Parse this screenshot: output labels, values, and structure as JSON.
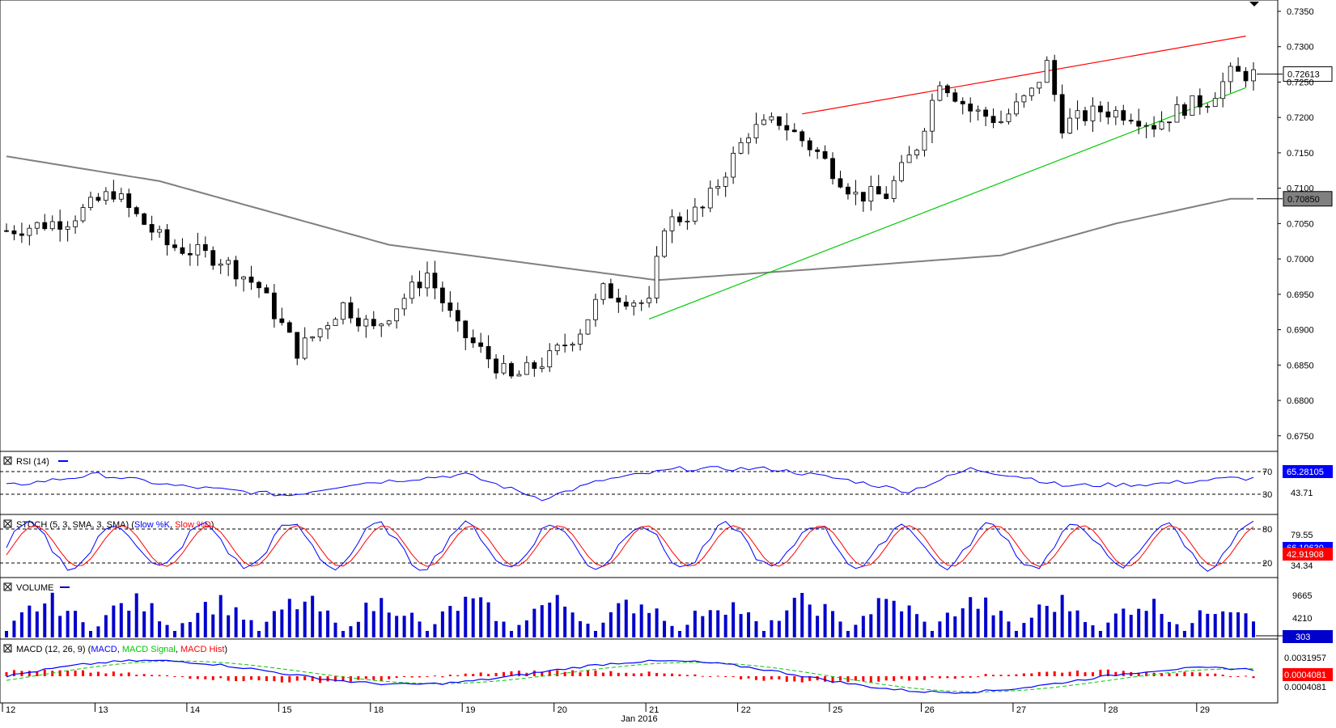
{
  "colors": {
    "candle": "#000000",
    "ma_line": "#808080",
    "resistance_line": "#ff0000",
    "support_line": "#00c800",
    "rsi": "#0000ff",
    "stoch_k": "#0000ff",
    "stoch_d": "#ff0000",
    "volume": "#0000cc",
    "macd": "#0000ff",
    "macd_signal": "#00c800",
    "macd_hist": "#ff0000",
    "last_price_label_bg": "#ffffff",
    "ma_label_bg": "#808080",
    "stoch_d_label_bg": "#ff0000",
    "volume_label_bg": "#0000cc",
    "macd_hist_label_bg": "#ff0000"
  },
  "chart_data": [
    {
      "type": "candlestick",
      "panel": "price",
      "y_ticks": [
        "0.7350",
        "0.7300",
        "0.7250",
        "0.7200",
        "0.7150",
        "0.7100",
        "0.7050",
        "0.7000",
        "0.6950",
        "0.6900",
        "0.6850",
        "0.6800",
        "0.6750"
      ],
      "ylim": [
        0.6728,
        0.7366
      ],
      "last_price_label": "0.72613",
      "ma_value_label": "0.70850",
      "approx_close_path": [
        [
          0,
          0.704
        ],
        [
          8,
          0.7055
        ],
        [
          14,
          0.7095
        ],
        [
          16,
          0.707
        ],
        [
          21,
          0.702
        ],
        [
          28,
          0.7
        ],
        [
          33,
          0.696
        ],
        [
          38,
          0.687
        ],
        [
          40,
          0.689
        ],
        [
          44,
          0.6935
        ],
        [
          48,
          0.69
        ],
        [
          55,
          0.698
        ],
        [
          59,
          0.69
        ],
        [
          66,
          0.683
        ],
        [
          71,
          0.686
        ],
        [
          75,
          0.69
        ],
        [
          78,
          0.6955
        ],
        [
          84,
          0.6935
        ],
        [
          86,
          0.705
        ],
        [
          91,
          0.707
        ],
        [
          97,
          0.718
        ],
        [
          101,
          0.7195
        ],
        [
          106,
          0.715
        ],
        [
          111,
          0.709
        ],
        [
          115,
          0.709
        ],
        [
          119,
          0.716
        ],
        [
          122,
          0.7255
        ],
        [
          126,
          0.721
        ],
        [
          130,
          0.7195
        ],
        [
          134,
          0.7235
        ],
        [
          136,
          0.7275
        ],
        [
          138,
          0.719
        ],
        [
          143,
          0.721
        ],
        [
          147,
          0.7205
        ],
        [
          150,
          0.719
        ],
        [
          154,
          0.7215
        ],
        [
          157,
          0.7225
        ],
        [
          160,
          0.7261
        ]
      ],
      "ma_path": [
        [
          0,
          0.7145
        ],
        [
          20,
          0.711
        ],
        [
          50,
          0.702
        ],
        [
          85,
          0.697
        ],
        [
          105,
          0.6985
        ],
        [
          130,
          0.7005
        ],
        [
          145,
          0.705
        ],
        [
          160,
          0.7085
        ]
      ],
      "resistance_line": {
        "from": [
          104,
          0.7205
        ],
        "to": [
          162,
          0.7315
        ]
      },
      "support_line": {
        "from": [
          84,
          0.6915
        ],
        "to": [
          162,
          0.7242
        ]
      }
    },
    {
      "type": "line",
      "panel": "rsi",
      "title": "RSI (14)",
      "levels": [
        "70",
        "30"
      ],
      "value_labels": [
        "65.28105",
        "43.71"
      ],
      "ylim": [
        0,
        100
      ],
      "path": [
        [
          0,
          45
        ],
        [
          12,
          65
        ],
        [
          22,
          45
        ],
        [
          37,
          28
        ],
        [
          45,
          48
        ],
        [
          60,
          65
        ],
        [
          70,
          22
        ],
        [
          78,
          55
        ],
        [
          88,
          75
        ],
        [
          100,
          75
        ],
        [
          110,
          55
        ],
        [
          118,
          35
        ],
        [
          126,
          75
        ],
        [
          134,
          58
        ],
        [
          138,
          45
        ],
        [
          150,
          48
        ],
        [
          160,
          58
        ]
      ]
    },
    {
      "type": "line",
      "panel": "stochastic",
      "title": "STOCH (5, 3, SMA, 3, SMA)",
      "series": [
        {
          "name": "Slow %K"
        },
        {
          "name": "Slow %D"
        }
      ],
      "levels": [
        "80",
        "20"
      ],
      "value_labels": [
        "79.55",
        "66.19630",
        "42.91908",
        "34.34"
      ],
      "ylim": [
        0,
        100
      ]
    },
    {
      "type": "bar",
      "panel": "volume",
      "title": "VOLUME",
      "tick_labels": [
        "9665",
        "4210"
      ],
      "value_label": "303"
    },
    {
      "type": "line",
      "panel": "macd",
      "title": "MACD (12, 26, 9)",
      "series": [
        {
          "name": "MACD"
        },
        {
          "name": "MACD Signal"
        },
        {
          "name": "MACD Hist"
        }
      ],
      "value_labels": [
        "0.0031957",
        "0.0004081",
        "0.0004081"
      ]
    }
  ],
  "x_axis": {
    "day_labels": [
      "12",
      "13",
      "14",
      "15",
      "18",
      "19",
      "20",
      "21",
      "22",
      "25",
      "26",
      "27",
      "28",
      "29"
    ],
    "month_label": "Jan 2016"
  }
}
